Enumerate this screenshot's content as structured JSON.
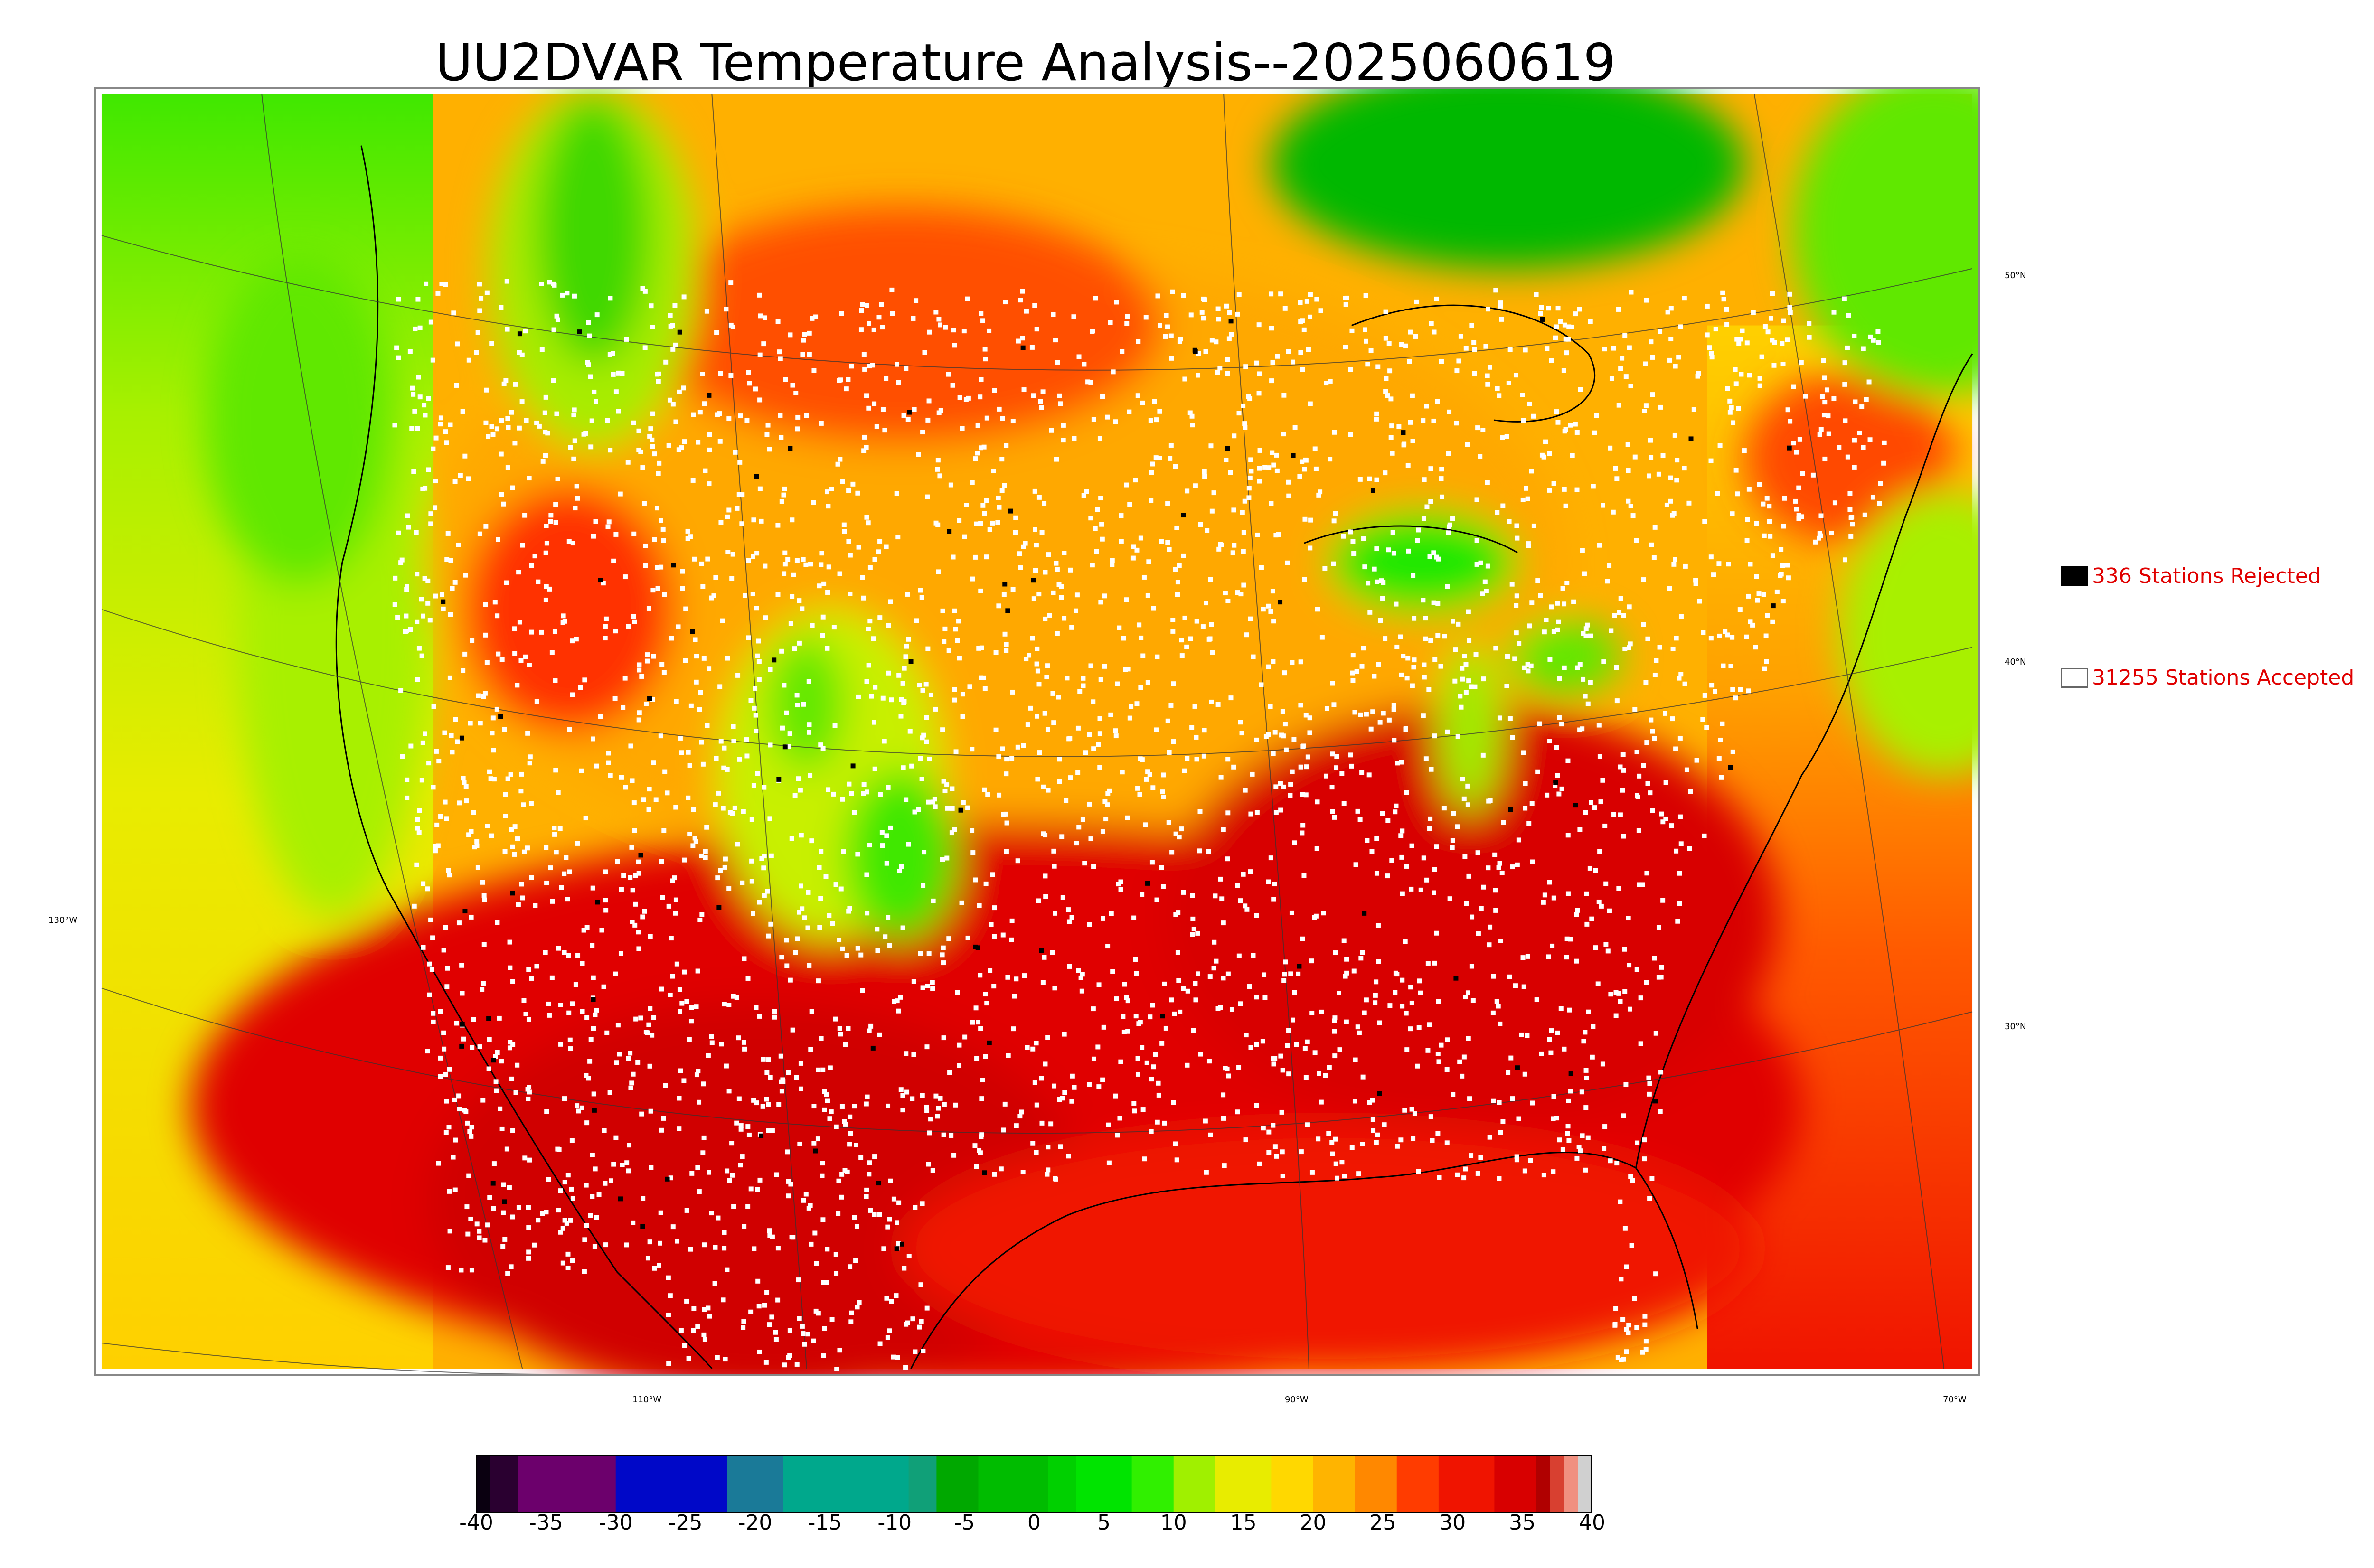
{
  "title": "UU2DVAR Temperature Analysis--2025060619",
  "map": {
    "lat_labels": [
      "50°N",
      "40°N",
      "30°N"
    ],
    "lon_labels": [
      "130°W",
      "110°W",
      "90°W",
      "70°W"
    ]
  },
  "legend": {
    "rejected": {
      "label": "336 Stations Rejected",
      "color": "#000000"
    },
    "accepted": {
      "label": "31255 Stations Accepted",
      "color": "#ffffff"
    },
    "text_color": "#e00000"
  },
  "colorbar": {
    "min": -40,
    "max": 40,
    "ticks": [
      "-40",
      "-35",
      "-30",
      "-25",
      "-20",
      "-15",
      "-10",
      "-5",
      "0",
      "5",
      "10",
      "15",
      "20",
      "25",
      "30",
      "35",
      "40"
    ],
    "bands": [
      {
        "from": -40,
        "to": -39,
        "color": "#0a0010"
      },
      {
        "from": -39,
        "to": -37,
        "color": "#2a0030"
      },
      {
        "from": -37,
        "to": -30,
        "color": "#6c006c"
      },
      {
        "from": -30,
        "to": -22,
        "color": "#0008c8"
      },
      {
        "from": -22,
        "to": -18,
        "color": "#1a7a98"
      },
      {
        "from": -18,
        "to": -9,
        "color": "#00a88c"
      },
      {
        "from": -9,
        "to": -7,
        "color": "#10a078"
      },
      {
        "from": -7,
        "to": -4,
        "color": "#00a800"
      },
      {
        "from": -4,
        "to": 1,
        "color": "#00bc00"
      },
      {
        "from": 1,
        "to": 3,
        "color": "#00d000"
      },
      {
        "from": 3,
        "to": 7,
        "color": "#00e400"
      },
      {
        "from": 7,
        "to": 10,
        "color": "#30f000"
      },
      {
        "from": 10,
        "to": 13,
        "color": "#a0f000"
      },
      {
        "from": 13,
        "to": 17,
        "color": "#e8ec00"
      },
      {
        "from": 17,
        "to": 20,
        "color": "#ffd800"
      },
      {
        "from": 20,
        "to": 23,
        "color": "#ffb400"
      },
      {
        "from": 23,
        "to": 26,
        "color": "#ff8800"
      },
      {
        "from": 26,
        "to": 29,
        "color": "#ff3c00"
      },
      {
        "from": 29,
        "to": 33,
        "color": "#f01400"
      },
      {
        "from": 33,
        "to": 36,
        "color": "#d80000"
      },
      {
        "from": 36,
        "to": 37,
        "color": "#b00000"
      },
      {
        "from": 37,
        "to": 38,
        "color": "#d84030"
      },
      {
        "from": 38,
        "to": 39,
        "color": "#f09080"
      },
      {
        "from": 39,
        "to": 40,
        "color": "#d0d0d0"
      }
    ]
  }
}
